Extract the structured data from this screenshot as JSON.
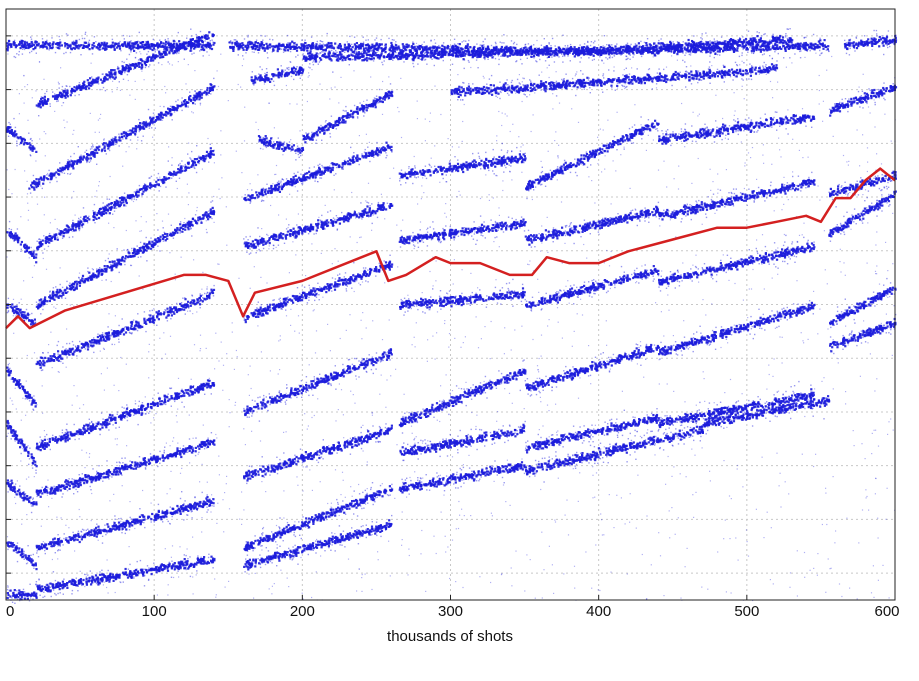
{
  "chart_data": {
    "type": "scatter",
    "title": "",
    "xlabel": "thousands of shots",
    "ylabel": "",
    "xlim": [
      0,
      600
    ],
    "ylim": [
      0,
      1
    ],
    "x_ticks": [
      0,
      100,
      200,
      300,
      400,
      500,
      600
    ],
    "y_ticks_count": 11,
    "grid": true,
    "legend": "none",
    "colors": {
      "scatter": "#1c1cdc",
      "line": "#d42020"
    },
    "bands": [
      {
        "segments": [
          [
            0,
            0.94,
            140,
            0.94
          ],
          [
            150,
            0.94,
            400,
            0.93
          ],
          [
            400,
            0.93,
            555,
            0.94
          ],
          [
            565,
            0.94,
            600,
            0.95
          ]
        ]
      },
      {
        "segments": [
          [
            0,
            0.8,
            20,
            0.76
          ],
          [
            20,
            0.84,
            140,
            0.96
          ],
          [
            165,
            0.88,
            200,
            0.9
          ],
          [
            200,
            0.92,
            390,
            0.93
          ],
          [
            390,
            0.93,
            530,
            0.95
          ]
        ]
      },
      {
        "segments": [
          [
            15,
            0.7,
            140,
            0.87
          ],
          [
            170,
            0.78,
            200,
            0.76
          ],
          [
            200,
            0.78,
            260,
            0.86
          ],
          [
            300,
            0.86,
            520,
            0.9
          ],
          [
            555,
            0.83,
            600,
            0.87
          ]
        ]
      },
      {
        "segments": [
          [
            0,
            0.63,
            20,
            0.58
          ],
          [
            20,
            0.6,
            140,
            0.76
          ],
          [
            160,
            0.68,
            260,
            0.77
          ],
          [
            265,
            0.72,
            350,
            0.75
          ],
          [
            350,
            0.7,
            440,
            0.81
          ],
          [
            440,
            0.78,
            545,
            0.82
          ],
          [
            555,
            0.69,
            600,
            0.72
          ]
        ]
      },
      {
        "segments": [
          [
            0,
            0.5,
            20,
            0.47
          ],
          [
            20,
            0.5,
            140,
            0.66
          ],
          [
            160,
            0.6,
            260,
            0.67
          ],
          [
            265,
            0.61,
            350,
            0.64
          ],
          [
            350,
            0.61,
            440,
            0.66
          ],
          [
            440,
            0.65,
            545,
            0.71
          ],
          [
            555,
            0.62,
            600,
            0.69
          ]
        ]
      },
      {
        "segments": [
          [
            0,
            0.39,
            20,
            0.33
          ],
          [
            20,
            0.4,
            140,
            0.52
          ],
          [
            160,
            0.48,
            260,
            0.57
          ],
          [
            265,
            0.5,
            350,
            0.52
          ],
          [
            350,
            0.5,
            440,
            0.56
          ],
          [
            440,
            0.54,
            545,
            0.6
          ],
          [
            555,
            0.47,
            600,
            0.53
          ]
        ]
      },
      {
        "segments": [
          [
            0,
            0.3,
            20,
            0.23
          ],
          [
            20,
            0.26,
            140,
            0.37
          ],
          [
            160,
            0.32,
            260,
            0.42
          ],
          [
            265,
            0.3,
            350,
            0.39
          ],
          [
            350,
            0.36,
            440,
            0.43
          ],
          [
            440,
            0.42,
            545,
            0.5
          ],
          [
            555,
            0.43,
            600,
            0.47
          ]
        ]
      },
      {
        "segments": [
          [
            0,
            0.2,
            20,
            0.16
          ],
          [
            20,
            0.18,
            140,
            0.27
          ],
          [
            160,
            0.21,
            260,
            0.29
          ],
          [
            265,
            0.25,
            350,
            0.29
          ],
          [
            350,
            0.26,
            440,
            0.31
          ],
          [
            440,
            0.3,
            545,
            0.35
          ]
        ]
      },
      {
        "segments": [
          [
            0,
            0.1,
            20,
            0.06
          ],
          [
            20,
            0.09,
            140,
            0.17
          ],
          [
            160,
            0.09,
            260,
            0.19
          ],
          [
            265,
            0.19,
            350,
            0.23
          ],
          [
            350,
            0.22,
            470,
            0.29
          ],
          [
            470,
            0.3,
            555,
            0.34
          ]
        ]
      },
      {
        "segments": [
          [
            0,
            0.01,
            20,
            0.01
          ],
          [
            20,
            0.02,
            140,
            0.07
          ],
          [
            160,
            0.06,
            260,
            0.13
          ]
        ]
      }
    ],
    "line": {
      "x": [
        0,
        8,
        16,
        40,
        80,
        120,
        135,
        150,
        160,
        168,
        200,
        240,
        250,
        258,
        270,
        290,
        300,
        320,
        340,
        355,
        365,
        380,
        400,
        420,
        450,
        480,
        500,
        520,
        540,
        550,
        560,
        570,
        580,
        590,
        600
      ],
      "y": [
        0.46,
        0.48,
        0.46,
        0.49,
        0.52,
        0.55,
        0.55,
        0.54,
        0.48,
        0.52,
        0.54,
        0.58,
        0.59,
        0.54,
        0.55,
        0.58,
        0.57,
        0.57,
        0.55,
        0.55,
        0.58,
        0.57,
        0.57,
        0.59,
        0.61,
        0.63,
        0.63,
        0.64,
        0.65,
        0.64,
        0.68,
        0.68,
        0.71,
        0.73,
        0.71
      ]
    }
  }
}
